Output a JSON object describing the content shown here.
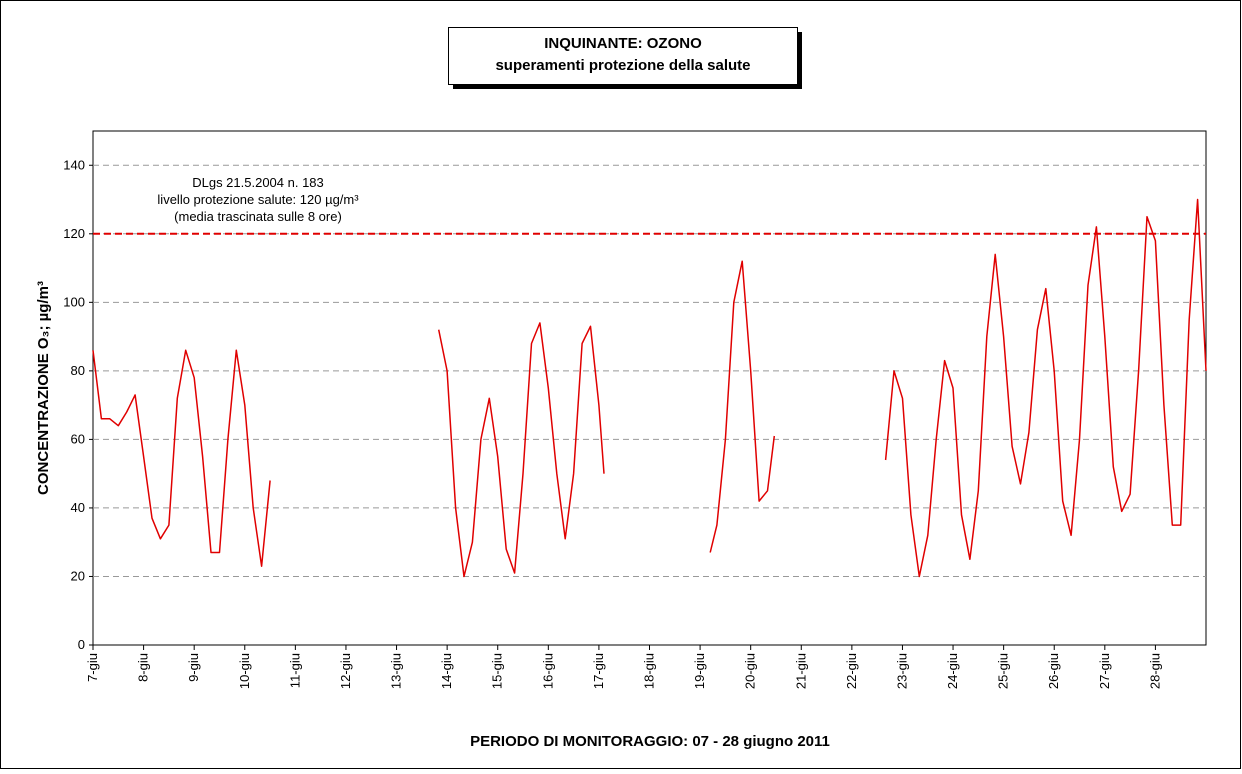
{
  "chart_data": {
    "type": "line",
    "title": [
      "INQUINANTE: OZONO",
      "superamenti protezione della salute"
    ],
    "x_label": "PERIODO DI MONITORAGGIO: 07 - 28 giugno 2011",
    "y_label": "CONCENTRAZIONE O₃; µg/m³",
    "annotation": [
      "DLgs 21.5.2004 n. 183",
      "livello protezione salute: 120 µg/m³",
      "(media trascinata sulle 8 ore)"
    ],
    "threshold": {
      "value": 120,
      "color": "#e00000"
    },
    "xlim": [
      7,
      29
    ],
    "xticks": [
      {
        "value": 7,
        "label": "7-giu"
      },
      {
        "value": 8,
        "label": "8-giu"
      },
      {
        "value": 9,
        "label": "9-giu"
      },
      {
        "value": 10,
        "label": "10-giu"
      },
      {
        "value": 11,
        "label": "11-giu"
      },
      {
        "value": 12,
        "label": "12-giu"
      },
      {
        "value": 13,
        "label": "13-giu"
      },
      {
        "value": 14,
        "label": "14-giu"
      },
      {
        "value": 15,
        "label": "15-giu"
      },
      {
        "value": 16,
        "label": "16-giu"
      },
      {
        "value": 17,
        "label": "17-giu"
      },
      {
        "value": 18,
        "label": "18-giu"
      },
      {
        "value": 19,
        "label": "19-giu"
      },
      {
        "value": 20,
        "label": "20-giu"
      },
      {
        "value": 21,
        "label": "21-giu"
      },
      {
        "value": 22,
        "label": "22-giu"
      },
      {
        "value": 23,
        "label": "23-giu"
      },
      {
        "value": 24,
        "label": "24-giu"
      },
      {
        "value": 25,
        "label": "25-giu"
      },
      {
        "value": 26,
        "label": "26-giu"
      },
      {
        "value": 27,
        "label": "27-giu"
      },
      {
        "value": 28,
        "label": "28-giu"
      }
    ],
    "ylim": [
      0,
      150
    ],
    "yticks": [
      0,
      20,
      40,
      60,
      80,
      100,
      120,
      140
    ],
    "grid": true,
    "x": [
      7.0,
      7.167,
      7.333,
      7.5,
      7.667,
      7.833,
      8.0,
      8.167,
      8.333,
      8.5,
      8.667,
      8.833,
      9.0,
      9.167,
      9.333,
      9.5,
      9.667,
      9.833,
      10.0,
      10.167,
      10.333,
      10.5,
      12,
      13.833,
      14.0,
      14.167,
      14.333,
      14.5,
      14.667,
      14.833,
      15.0,
      15.167,
      15.333,
      15.5,
      15.667,
      15.833,
      16.0,
      16.167,
      16.333,
      16.5,
      16.667,
      16.833,
      17.0,
      17.1,
      18,
      19.2,
      19.333,
      19.5,
      19.667,
      19.833,
      20.0,
      20.167,
      20.333,
      20.467,
      21.5,
      22.667,
      22.833,
      23.0,
      23.167,
      23.333,
      23.5,
      23.667,
      23.833,
      24.0,
      24.167,
      24.333,
      24.5,
      24.667,
      24.833,
      25.0,
      25.167,
      25.333,
      25.5,
      25.667,
      25.833,
      26.0,
      26.167,
      26.333,
      26.5,
      26.667,
      26.833,
      27.0,
      27.167,
      27.333,
      27.5,
      27.667,
      27.833,
      28.0,
      28.167,
      28.333,
      28.5,
      28.667,
      28.833,
      29.0
    ],
    "series": [
      {
        "name": "O3",
        "color": "#e00000",
        "values": [
          86,
          66,
          66,
          64,
          68,
          73,
          55,
          37,
          31,
          35,
          72,
          86,
          78,
          55,
          27,
          27,
          60,
          86,
          70,
          40,
          23,
          48,
          null,
          92,
          80,
          40,
          20,
          30,
          60,
          72,
          55,
          28,
          21,
          50,
          88,
          94,
          75,
          50,
          31,
          50,
          88,
          93,
          70,
          50,
          null,
          27,
          35,
          60,
          100,
          112,
          80,
          42,
          45,
          61,
          null,
          54,
          80,
          72,
          38,
          20,
          32,
          60,
          83,
          75,
          38,
          25,
          45,
          90,
          114,
          90,
          58,
          47,
          62,
          92,
          104,
          80,
          42,
          32,
          60,
          105,
          122,
          90,
          52,
          39,
          44,
          80,
          125,
          118,
          70,
          35,
          35,
          95,
          130,
          80
        ]
      }
    ]
  }
}
